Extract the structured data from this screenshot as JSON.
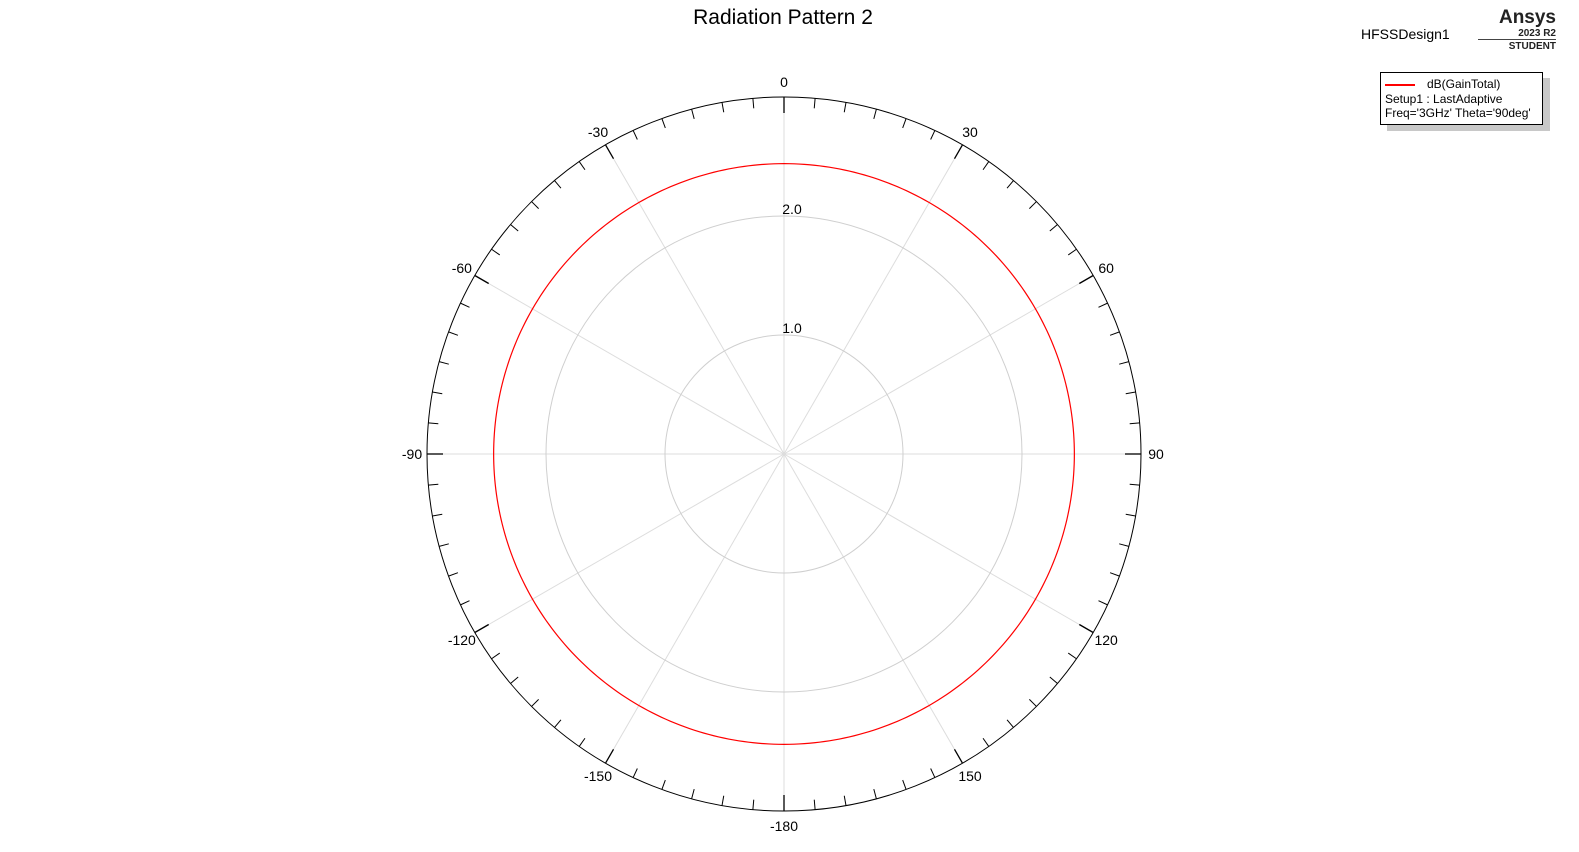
{
  "header": {
    "title": "Radiation Pattern 2",
    "design_name": "HFSSDesign1",
    "brand": {
      "name": "Ansys",
      "version": "2023 R2",
      "edition": "STUDENT"
    }
  },
  "legend": {
    "trace_label": "dB(GainTotal)",
    "setup_line": "Setup1 : LastAdaptive",
    "params_line": "Freq='3GHz' Theta='90deg'",
    "placement": "top-right"
  },
  "colors": {
    "trace": "#ff0000",
    "grid": "#cfcfcf",
    "axis": "#000000",
    "background": "#ffffff"
  },
  "chart_data": {
    "type": "polar",
    "title": "Radiation Pattern 2",
    "angle_unit": "deg",
    "angle_zero": "top",
    "angle_direction": "clockwise",
    "angle_labels": [
      0,
      30,
      60,
      90,
      120,
      150,
      -180,
      -150,
      -120,
      -90,
      -60,
      -30
    ],
    "radial_ticks": [
      1.0,
      2.0
    ],
    "radial_tick_labels": [
      "1.0",
      "2.0"
    ],
    "radial_range": [
      0,
      3.0
    ],
    "grid": true,
    "series": [
      {
        "name": "dB(GainTotal)",
        "color": "#ff0000",
        "phi": [
          -180,
          -150,
          -120,
          -90,
          -60,
          -30,
          0,
          30,
          60,
          90,
          120,
          150,
          180
        ],
        "values": [
          2.44,
          2.44,
          2.44,
          2.44,
          2.44,
          2.44,
          2.44,
          2.44,
          2.44,
          2.44,
          2.44,
          2.44,
          2.44
        ]
      }
    ]
  }
}
